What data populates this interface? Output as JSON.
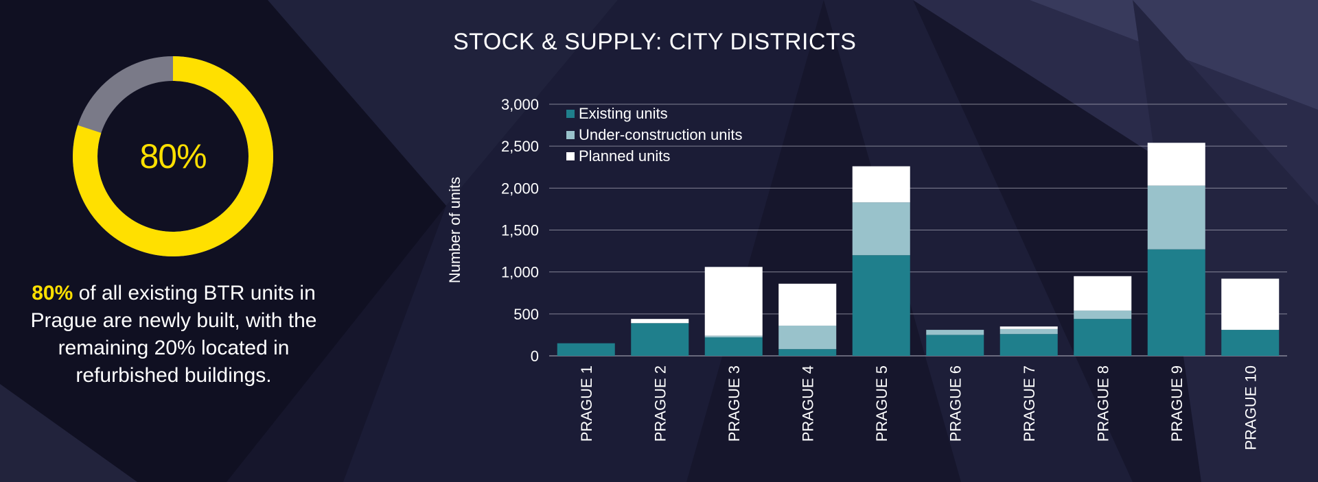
{
  "colors": {
    "yellow": "#ffe000",
    "donut_rest": "#7a7a88",
    "existing": "#1f7f8c",
    "under_construction": "#99c2cb",
    "planned": "#ffffff"
  },
  "donut": {
    "value": 80,
    "label": "80%"
  },
  "statement": {
    "highlight": "80%",
    "rest": "of all existing BTR units in Prague are newly built, with the remaining 20% located in refurbished buildings."
  },
  "chart_data": {
    "type": "bar",
    "stacked": true,
    "title": "STOCK & SUPPLY: CITY DISTRICTS",
    "xlabel": "",
    "ylabel": "Number of units",
    "ylim": [
      0,
      3000
    ],
    "yticks": [
      0,
      500,
      1000,
      1500,
      2000,
      2500,
      3000
    ],
    "ytick_labels": [
      "0",
      "500",
      "1,000",
      "1,500",
      "2,000",
      "2,500",
      "3,000"
    ],
    "grid": true,
    "legend": "top-left",
    "categories": [
      "PRAGUE 1",
      "PRAGUE 2",
      "PRAGUE 3",
      "PRAGUE 4",
      "PRAGUE 5",
      "PRAGUE 6",
      "PRAGUE 7",
      "PRAGUE 8",
      "PRAGUE 9",
      "PRAGUE 10"
    ],
    "series": [
      {
        "name": "Existing units",
        "values": [
          150,
          390,
          220,
          80,
          1200,
          250,
          260,
          440,
          1270,
          310
        ]
      },
      {
        "name": "Under-construction units",
        "values": [
          0,
          0,
          20,
          280,
          630,
          60,
          60,
          100,
          760,
          0
        ]
      },
      {
        "name": "Planned units",
        "values": [
          0,
          50,
          820,
          500,
          430,
          0,
          30,
          410,
          510,
          610
        ]
      }
    ]
  }
}
